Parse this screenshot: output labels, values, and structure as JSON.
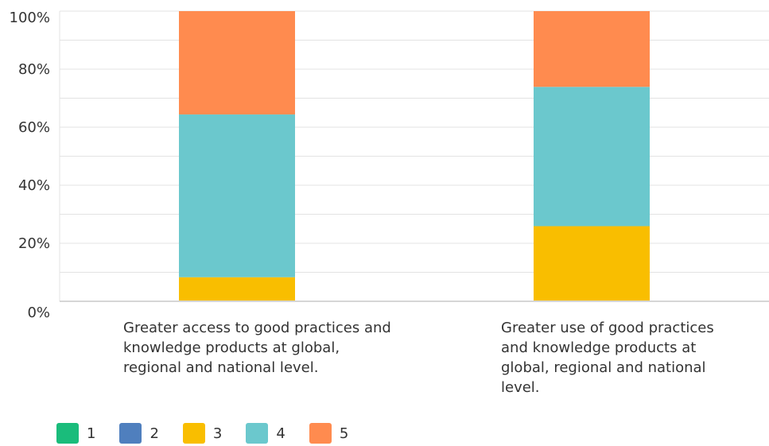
{
  "chart_data": {
    "type": "bar",
    "stacked": true,
    "categories": [
      "Greater access to good practices and knowledge products at global, regional and national level.",
      "Greater use of good practices and knowledge products at global, regional and national level."
    ],
    "series": [
      {
        "name": "1",
        "color": "#1abc7b",
        "values": [
          0,
          0
        ]
      },
      {
        "name": "2",
        "color": "#4f7fbe",
        "values": [
          0,
          0
        ]
      },
      {
        "name": "3",
        "color": "#f9be00",
        "values": [
          8.3,
          25.9
        ]
      },
      {
        "name": "4",
        "color": "#6bc8cd",
        "values": [
          56.1,
          48.0
        ]
      },
      {
        "name": "5",
        "color": "#ff8b4f",
        "values": [
          35.6,
          26.1
        ]
      }
    ],
    "y_ticks": [
      "0%",
      "20%",
      "40%",
      "60%",
      "80%",
      "100%"
    ],
    "ylim": [
      0,
      100
    ],
    "grid": true,
    "legend": "bottom-left"
  }
}
